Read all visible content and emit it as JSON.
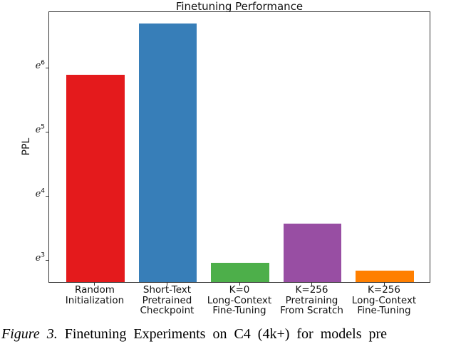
{
  "chart_data": {
    "type": "bar",
    "title": "Finetuning Performance",
    "xlabel": "",
    "ylabel": "PPL",
    "yscale": "log-base-e",
    "grid": false,
    "legend": null,
    "categories": [
      [
        "Random",
        "Initialization"
      ],
      [
        "Short-Text",
        "Pretrained",
        "Checkpoint"
      ],
      [
        "K=0",
        "Long-Context",
        "Fine-Tuning"
      ],
      [
        "K=256",
        "Pretraining",
        "From Scratch"
      ],
      [
        "K=256",
        "Long-Context",
        "Fine-Tuning"
      ]
    ],
    "values": [
      360,
      800,
      19,
      35,
      17
    ],
    "bar_colors": [
      "#e41a1c",
      "#377eb8",
      "#4daf4a",
      "#984ea3",
      "#ff7f00"
    ],
    "ytick_exponents": [
      3,
      4,
      5,
      6
    ],
    "ytick_base": "e",
    "ylim_ln": [
      2.65,
      6.88
    ]
  },
  "caption": {
    "label": "Figure 3.",
    "text": " Finetuning Experiments on C4 (4k+) for models pre"
  }
}
